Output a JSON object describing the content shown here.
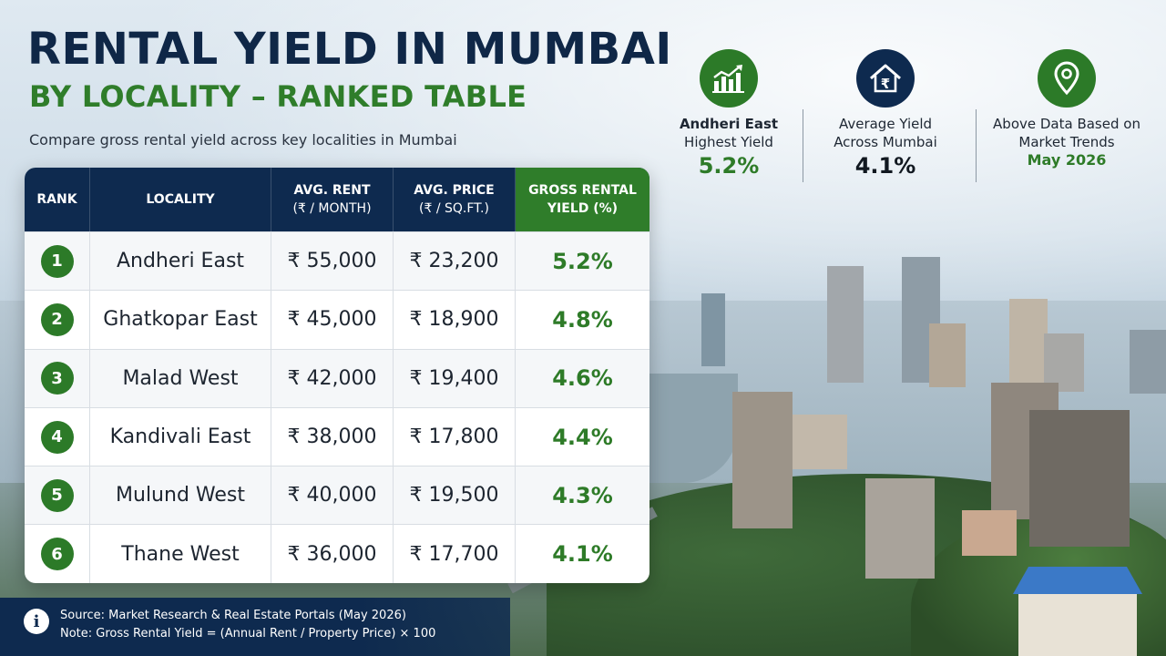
{
  "header": {
    "title": "RENTAL YIELD IN MUMBAI",
    "subtitle": "BY LOCALITY – RANKED TABLE",
    "description": "Compare gross rental yield across key localities in Mumbai"
  },
  "table": {
    "columns": {
      "rank": "RANK",
      "locality": "LOCALITY",
      "rent_line1": "AVG. RENT",
      "rent_line2": "(₹ / MONTH)",
      "price_line1": "AVG. PRICE",
      "price_line2": "(₹ / SQ.FT.)",
      "yield_line1": "GROSS RENTAL",
      "yield_line2": "YIELD (%)"
    },
    "rows": [
      {
        "rank": "1",
        "locality": "Andheri East",
        "rent": "₹ 55,000",
        "price": "₹ 23,200",
        "yield": "5.2%"
      },
      {
        "rank": "2",
        "locality": "Ghatkopar East",
        "rent": "₹ 45,000",
        "price": "₹ 18,900",
        "yield": "4.8%"
      },
      {
        "rank": "3",
        "locality": "Malad West",
        "rent": "₹ 42,000",
        "price": "₹ 19,400",
        "yield": "4.6%"
      },
      {
        "rank": "4",
        "locality": "Kandivali East",
        "rent": "₹ 38,000",
        "price": "₹ 17,800",
        "yield": "4.4%"
      },
      {
        "rank": "5",
        "locality": "Mulund West",
        "rent": "₹ 40,000",
        "price": "₹ 19,500",
        "yield": "4.3%"
      },
      {
        "rank": "6",
        "locality": "Thane West",
        "rent": "₹ 36,000",
        "price": "₹ 17,700",
        "yield": "4.1%"
      }
    ]
  },
  "stats": [
    {
      "icon": "bar-chart-icon",
      "label_line1": "Andheri East",
      "label_line2": "Highest Yield",
      "value": "5.2%"
    },
    {
      "icon": "house-rupee-icon",
      "label_line1": "Average Yield",
      "label_line2": "Across Mumbai",
      "value": "4.1%"
    },
    {
      "icon": "location-pin-icon",
      "label_line1": "Above Data Based on",
      "label_line2": "Market Trends",
      "value": "May 2026"
    }
  ],
  "footer": {
    "info_icon": "i",
    "source": "Source: Market Research & Real Estate Portals (May 2026)",
    "note": "Note: Gross Rental Yield = (Annual Rent / Property Price) × 100"
  },
  "colors": {
    "navy": "#0e2a4f",
    "green": "#2f7d2a",
    "white": "#ffffff"
  }
}
